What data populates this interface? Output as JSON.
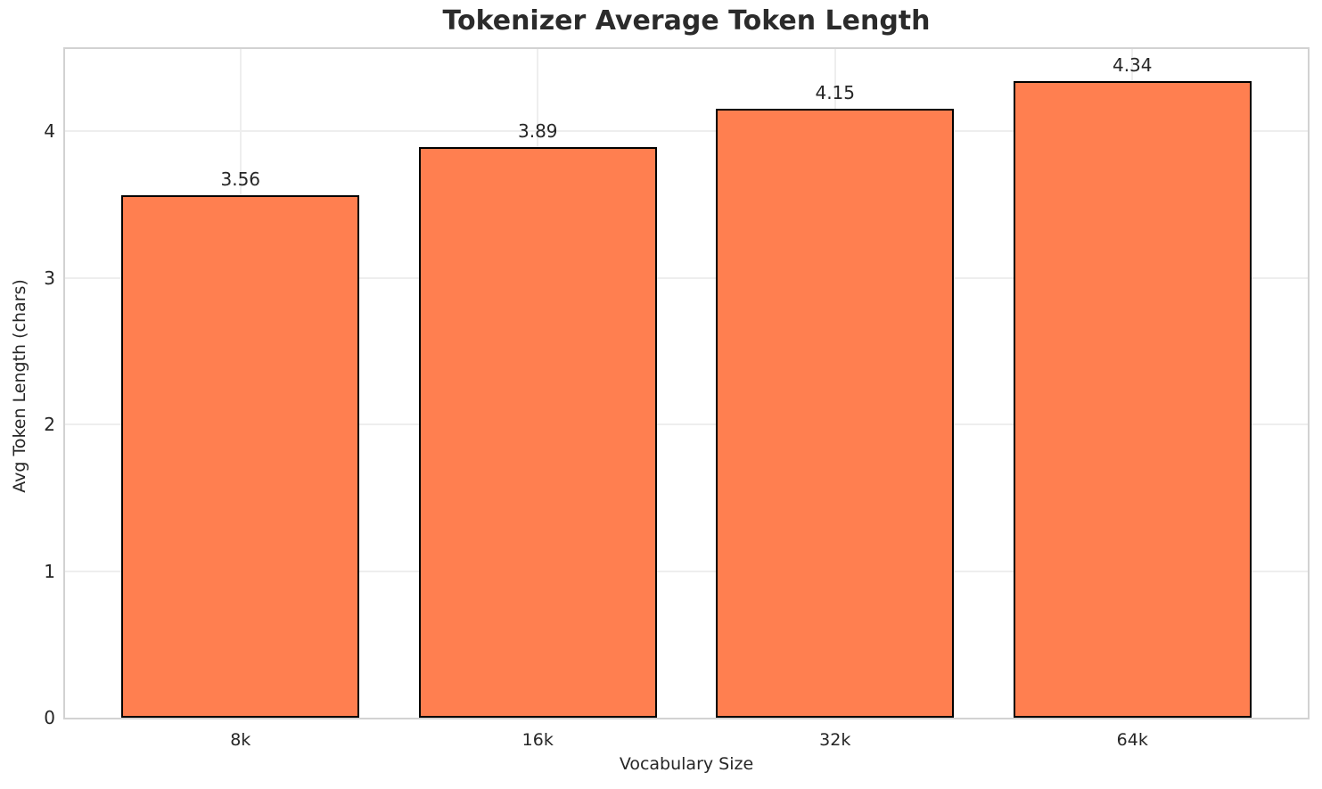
{
  "chart_data": {
    "type": "bar",
    "title": "Tokenizer Average Token Length",
    "xlabel": "Vocabulary Size",
    "ylabel": "Avg Token Length (chars)",
    "categories": [
      "8k",
      "16k",
      "32k",
      "64k"
    ],
    "values": [
      3.56,
      3.89,
      4.15,
      4.34
    ],
    "value_labels": [
      "3.56",
      "3.89",
      "4.15",
      "4.34"
    ],
    "yticks": [
      0,
      1,
      2,
      3,
      4
    ],
    "ylim": [
      0,
      4.56
    ],
    "grid": true,
    "legend_position": "none",
    "bar_color": "#FF7F50",
    "bar_edge_color": "#000000"
  }
}
